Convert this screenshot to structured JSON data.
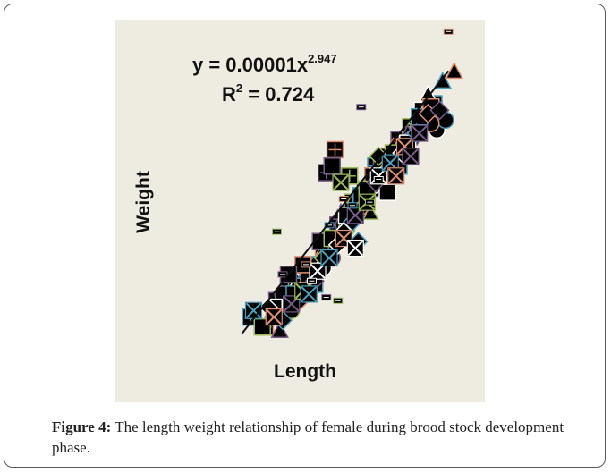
{
  "chart_data": {
    "type": "scatter",
    "title": "",
    "xlabel": "Length",
    "ylabel": "Weight",
    "xlim": [
      0,
      100
    ],
    "ylim": [
      0,
      100
    ],
    "grid": false,
    "legend": "none",
    "annotations": {
      "equation_prefix": "y = 0.00001x",
      "equation_exponent": "2.947",
      "r2_prefix": "R",
      "r2_exponent": "2",
      "r2_suffix": " = 0.724"
    },
    "trendline": {
      "type": "power",
      "x": [
        22,
        93
      ],
      "y": [
        12,
        92
      ]
    },
    "palette": [
      "#4d9fbf",
      "#e08e70",
      "#7a5c8a",
      "#9bbb59",
      "#ffffff"
    ],
    "series": [
      {
        "marker": "square-cross",
        "points": [
          [
            25,
            17
          ],
          [
            30,
            14
          ],
          [
            34,
            22
          ],
          [
            38,
            26
          ],
          [
            42,
            30
          ],
          [
            46,
            33
          ],
          [
            50,
            38
          ],
          [
            55,
            45
          ],
          [
            60,
            52
          ],
          [
            64,
            56
          ],
          [
            68,
            63
          ],
          [
            72,
            66
          ],
          [
            76,
            71
          ],
          [
            80,
            75
          ],
          [
            84,
            80
          ],
          [
            88,
            82
          ],
          [
            54,
            68
          ],
          [
            51,
            61
          ],
          [
            59,
            60
          ],
          [
            63,
            50
          ],
          [
            47,
            27
          ],
          [
            43,
            25
          ]
        ]
      },
      {
        "marker": "triangle",
        "points": [
          [
            32,
            18
          ],
          [
            35,
            13
          ],
          [
            37,
            21
          ],
          [
            41,
            28
          ],
          [
            44,
            31
          ],
          [
            49,
            36
          ],
          [
            56,
            49
          ],
          [
            61,
            54
          ],
          [
            66,
            58
          ],
          [
            70,
            65
          ],
          [
            74,
            69
          ],
          [
            79,
            73
          ],
          [
            82,
            78
          ],
          [
            86,
            85
          ],
          [
            91,
            89
          ],
          [
            95,
            92
          ],
          [
            69,
            56
          ],
          [
            66,
            49
          ],
          [
            71,
            58
          ],
          [
            73,
            62
          ]
        ]
      },
      {
        "marker": "circle",
        "points": [
          [
            36,
            24
          ],
          [
            39,
            19
          ],
          [
            44,
            26
          ],
          [
            48,
            33
          ],
          [
            52,
            37
          ],
          [
            57,
            45
          ],
          [
            62,
            49
          ],
          [
            67,
            57
          ],
          [
            71,
            61
          ],
          [
            75,
            66
          ],
          [
            80,
            71
          ],
          [
            85,
            77
          ],
          [
            89,
            74
          ],
          [
            92,
            77
          ],
          [
            87,
            76
          ],
          [
            53,
            35
          ],
          [
            58,
            44
          ],
          [
            50,
            32
          ],
          [
            46,
            30
          ]
        ]
      },
      {
        "marker": "square",
        "points": [
          [
            29,
            14
          ],
          [
            33,
            20
          ],
          [
            40,
            24
          ],
          [
            45,
            30
          ],
          [
            49,
            40
          ],
          [
            53,
            41
          ],
          [
            58,
            48
          ],
          [
            63,
            54
          ],
          [
            67,
            60
          ],
          [
            70,
            63
          ],
          [
            74,
            67
          ],
          [
            79,
            70
          ],
          [
            83,
            78
          ],
          [
            87,
            81
          ],
          [
            53,
            63
          ],
          [
            65,
            56
          ],
          [
            72,
            55
          ],
          [
            76,
            63
          ],
          [
            43,
            33
          ],
          [
            38,
            30
          ]
        ]
      },
      {
        "marker": "diamond",
        "points": [
          [
            31,
            20
          ],
          [
            36,
            16
          ],
          [
            42,
            22
          ],
          [
            47,
            28
          ],
          [
            50,
            35
          ],
          [
            55,
            39
          ],
          [
            60,
            46
          ],
          [
            64,
            51
          ],
          [
            68,
            58
          ],
          [
            72,
            62
          ],
          [
            77,
            67
          ],
          [
            82,
            73
          ],
          [
            86,
            79
          ],
          [
            90,
            80
          ],
          [
            69,
            66
          ],
          [
            57,
            43
          ],
          [
            62,
            40
          ]
        ]
      },
      {
        "marker": "cross",
        "points": [
          [
            26,
            19
          ],
          [
            33,
            17
          ],
          [
            39,
            21
          ],
          [
            43,
            25
          ],
          [
            48,
            31
          ],
          [
            52,
            35
          ],
          [
            57,
            41
          ],
          [
            61,
            48
          ],
          [
            65,
            52
          ],
          [
            69,
            60
          ],
          [
            73,
            64
          ],
          [
            78,
            69
          ],
          [
            83,
            73
          ],
          [
            56,
            58
          ],
          [
            61,
            38
          ],
          [
            45,
            24
          ],
          [
            75,
            60
          ],
          [
            80,
            66
          ]
        ]
      },
      {
        "marker": "dash",
        "points": [
          [
            93,
            104
          ],
          [
            63,
            81
          ],
          [
            34,
            43
          ],
          [
            46,
            28
          ],
          [
            52,
            45
          ],
          [
            44,
            33
          ],
          [
            36,
            30
          ],
          [
            66,
            52
          ],
          [
            69,
            59
          ],
          [
            60,
            51
          ],
          [
            57,
            53
          ],
          [
            51,
            23
          ],
          [
            55,
            22
          ]
        ]
      }
    ]
  },
  "caption": {
    "label": "Figure 4:",
    "text": " The length weight relationship of female during brood stock development phase."
  }
}
